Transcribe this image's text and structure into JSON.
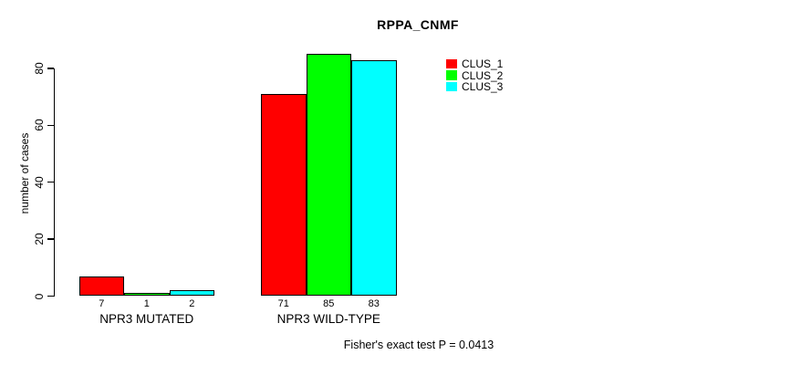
{
  "chart_data": {
    "type": "bar",
    "title": "RPPA_CNMF",
    "ylabel": "number of cases",
    "xlabel": "",
    "categories": [
      "NPR3 MUTATED",
      "NPR3 WILD-TYPE"
    ],
    "series": [
      {
        "name": "CLUS_1",
        "color": "#ff0000",
        "values": [
          7,
          71
        ]
      },
      {
        "name": "CLUS_2",
        "color": "#00ff00",
        "values": [
          1,
          85
        ]
      },
      {
        "name": "CLUS_3",
        "color": "#00ffff",
        "values": [
          2,
          83
        ]
      }
    ],
    "yticks": [
      0,
      20,
      40,
      60,
      80
    ],
    "ylim": [
      0,
      85
    ],
    "grid": false,
    "show_bar_value_labels": true,
    "legend": {
      "position": "top-right",
      "entries": [
        "CLUS_1",
        "CLUS_2",
        "CLUS_3"
      ]
    },
    "annotation": "Fisher's exact test P = 0.0413"
  }
}
